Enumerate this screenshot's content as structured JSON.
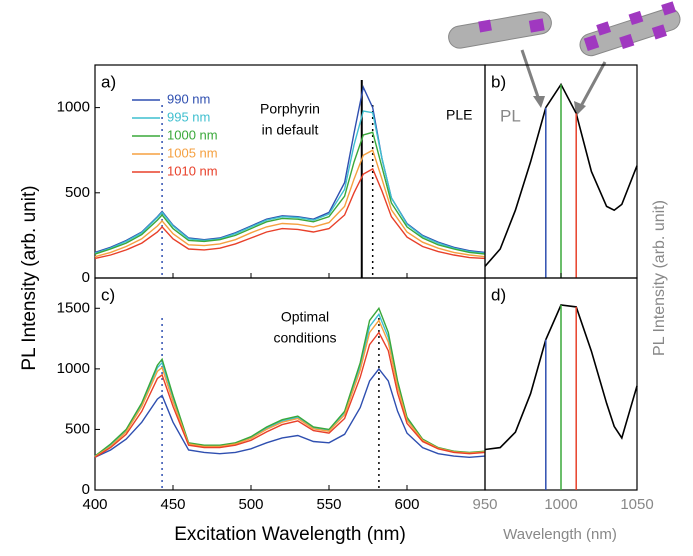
{
  "chart_data": [
    {
      "type": "line",
      "label": "a)",
      "annotation": [
        "Porphyrin",
        "in default"
      ],
      "annotation2": "PLE",
      "x": [
        400,
        410,
        420,
        430,
        440,
        443,
        450,
        460,
        470,
        480,
        490,
        500,
        510,
        520,
        530,
        540,
        550,
        560,
        566,
        572,
        578,
        584,
        590,
        600,
        610,
        620,
        630,
        640,
        650
      ],
      "xlim": [
        400,
        650
      ],
      "ylim": [
        0,
        1250
      ],
      "yticks": [
        0,
        500,
        1000
      ],
      "series": [
        {
          "name": "990 nm",
          "color": "#2f4fb0",
          "values": [
            150,
            180,
            220,
            270,
            360,
            390,
            310,
            235,
            225,
            235,
            265,
            305,
            345,
            365,
            360,
            345,
            385,
            560,
            850,
            1120,
            1000,
            700,
            470,
            320,
            250,
            210,
            180,
            160,
            150
          ]
        },
        {
          "name": "995 nm",
          "color": "#3fbfcf",
          "values": [
            145,
            175,
            215,
            265,
            355,
            385,
            305,
            230,
            220,
            230,
            260,
            300,
            340,
            360,
            355,
            340,
            375,
            520,
            780,
            980,
            970,
            700,
            470,
            315,
            245,
            205,
            175,
            155,
            145
          ]
        },
        {
          "name": "1000 nm",
          "color": "#3aa83a",
          "values": [
            140,
            170,
            205,
            255,
            340,
            370,
            290,
            220,
            215,
            225,
            250,
            290,
            330,
            350,
            345,
            330,
            360,
            480,
            680,
            840,
            855,
            650,
            440,
            300,
            235,
            195,
            170,
            150,
            140
          ]
        },
        {
          "name": "1005 nm",
          "color": "#f5a040",
          "values": [
            125,
            150,
            185,
            230,
            305,
            335,
            260,
            195,
            190,
            200,
            225,
            265,
            300,
            320,
            315,
            300,
            325,
            420,
            580,
            720,
            750,
            580,
            400,
            270,
            210,
            175,
            150,
            135,
            125
          ]
        },
        {
          "name": "1010 nm",
          "color": "#e8402a",
          "values": [
            115,
            135,
            165,
            205,
            270,
            300,
            230,
            170,
            165,
            175,
            200,
            235,
            270,
            290,
            285,
            270,
            290,
            370,
            500,
            610,
            640,
            510,
            360,
            240,
            185,
            155,
            135,
            120,
            115
          ]
        }
      ],
      "vlines": [
        {
          "x": 443,
          "color": "#2f4fb0",
          "style": "dotted"
        },
        {
          "x": 571,
          "color": "#000000",
          "style": "solid"
        },
        {
          "x": 578,
          "color": "#000000",
          "style": "dotted"
        }
      ]
    },
    {
      "type": "line",
      "label": "b)",
      "annotation": "PL",
      "ylabel": "PL Intensity (arb. unit)",
      "x": [
        950,
        960,
        970,
        980,
        990,
        1000,
        1010,
        1020,
        1030,
        1035,
        1040,
        1050
      ],
      "xlim": [
        950,
        1050
      ],
      "ylim": [
        0,
        1.1
      ],
      "color": "#000000",
      "values": [
        0.06,
        0.15,
        0.35,
        0.6,
        0.88,
        1.0,
        0.85,
        0.55,
        0.37,
        0.35,
        0.38,
        0.58
      ],
      "markers": [
        {
          "x": 990,
          "color": "#2f4fb0"
        },
        {
          "x": 1000,
          "color": "#3aa83a"
        },
        {
          "x": 1010,
          "color": "#e8402a"
        }
      ]
    },
    {
      "type": "line",
      "label": "c)",
      "annotation": [
        "Optimal",
        "conditions"
      ],
      "xlabel": "Excitation Wavelength (nm)",
      "ylabel": "PL Intensity (arb. unit)",
      "x": [
        400,
        410,
        420,
        430,
        440,
        443,
        450,
        460,
        470,
        480,
        490,
        500,
        510,
        520,
        530,
        540,
        550,
        560,
        570,
        576,
        582,
        588,
        594,
        600,
        610,
        620,
        630,
        640,
        650
      ],
      "xlim": [
        400,
        650
      ],
      "xticks": [
        400,
        450,
        500,
        550,
        600
      ],
      "ylim": [
        0,
        1750
      ],
      "yticks": [
        0,
        500,
        1000,
        1500
      ],
      "series": [
        {
          "color": "#2f4fb0",
          "values": [
            270,
            330,
            420,
            560,
            750,
            780,
            560,
            330,
            310,
            300,
            310,
            340,
            390,
            430,
            450,
            400,
            390,
            460,
            680,
            900,
            1000,
            900,
            650,
            470,
            350,
            300,
            280,
            270,
            280
          ]
        },
        {
          "color": "#3fbfcf",
          "values": [
            280,
            370,
            490,
            710,
            1010,
            1050,
            760,
            385,
            365,
            365,
            385,
            435,
            510,
            570,
            600,
            515,
            495,
            640,
            1020,
            1350,
            1450,
            1260,
            880,
            590,
            415,
            348,
            318,
            308,
            318
          ]
        },
        {
          "color": "#3aa83a",
          "values": [
            280,
            380,
            500,
            720,
            1030,
            1080,
            780,
            390,
            370,
            370,
            390,
            440,
            520,
            580,
            610,
            520,
            500,
            650,
            1050,
            1400,
            1500,
            1300,
            900,
            600,
            420,
            350,
            320,
            310,
            320
          ]
        },
        {
          "color": "#f5a040",
          "values": [
            275,
            360,
            480,
            690,
            980,
            1010,
            730,
            380,
            360,
            360,
            380,
            425,
            500,
            560,
            590,
            505,
            485,
            620,
            990,
            1300,
            1400,
            1220,
            850,
            575,
            410,
            345,
            315,
            305,
            315
          ]
        },
        {
          "color": "#e8402a",
          "values": [
            270,
            350,
            460,
            650,
            920,
            950,
            690,
            370,
            350,
            350,
            370,
            410,
            480,
            540,
            570,
            490,
            470,
            590,
            930,
            1200,
            1300,
            1150,
            800,
            550,
            400,
            340,
            310,
            300,
            310
          ]
        }
      ],
      "vlines": [
        {
          "x": 443,
          "color": "#2f4fb0",
          "style": "dotted"
        },
        {
          "x": 582,
          "color": "#000000",
          "style": "dotted"
        }
      ]
    },
    {
      "type": "line",
      "label": "d)",
      "xlabel": "Wavelength (nm)",
      "x": [
        950,
        960,
        970,
        980,
        990,
        1000,
        1010,
        1020,
        1030,
        1035,
        1040,
        1050
      ],
      "xlim": [
        950,
        1050
      ],
      "xticks": [
        950,
        1000,
        1050
      ],
      "ylim": [
        0,
        1.1
      ],
      "color": "#000000",
      "values": [
        0.21,
        0.22,
        0.3,
        0.5,
        0.78,
        0.96,
        0.95,
        0.72,
        0.45,
        0.33,
        0.27,
        0.54
      ],
      "markers": [
        {
          "x": 990,
          "color": "#2f4fb0"
        },
        {
          "x": 1000,
          "color": "#3aa83a"
        },
        {
          "x": 1010,
          "color": "#e8402a"
        }
      ]
    }
  ]
}
